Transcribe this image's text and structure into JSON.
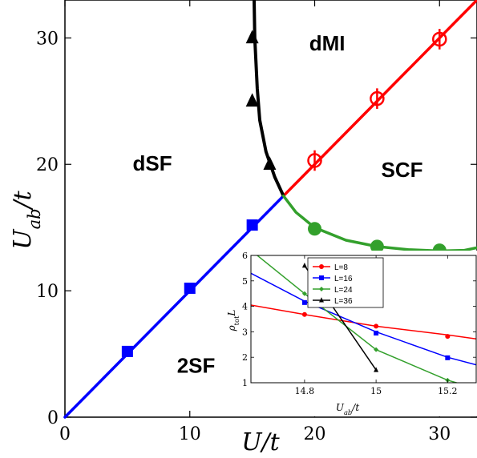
{
  "chart_data": [
    {
      "type": "line",
      "xlabel": "U/t",
      "ylabel": "U_ab/t",
      "xlim": [
        0,
        33
      ],
      "ylim": [
        0,
        33
      ],
      "x_ticks": [
        0,
        10,
        20,
        30
      ],
      "y_ticks": [
        0,
        10,
        20,
        30
      ],
      "grid": false,
      "region_labels": [
        {
          "text": "dMI",
          "x": 21,
          "y": 29
        },
        {
          "text": "dSF",
          "x": 7,
          "y": 19.5
        },
        {
          "text": "SCF",
          "x": 27,
          "y": 19
        },
        {
          "text": "2SF",
          "x": 10.5,
          "y": 3.5
        }
      ],
      "series": [
        {
          "color": "#0000ff",
          "line": [
            [
              0,
              0
            ],
            [
              17.5,
              17.5
            ]
          ],
          "marker": "square",
          "points": [
            [
              5,
              5.2
            ],
            [
              10,
              10.2
            ],
            [
              15,
              15.2
            ]
          ]
        },
        {
          "color": "#ff0000",
          "line": [
            [
              17.5,
              17.5
            ],
            [
              33,
              33
            ]
          ],
          "marker": "open-circle",
          "points": [
            [
              20,
              20.3
            ],
            [
              25,
              25.2
            ],
            [
              30,
              29.9
            ]
          ]
        },
        {
          "color": "#000000",
          "line": [
            [
              17.5,
              17.5
            ],
            [
              16.8,
              19.0
            ],
            [
              16.1,
              21.0
            ],
            [
              15.6,
              23.5
            ],
            [
              15.4,
              26.0
            ],
            [
              15.2,
              30.0
            ],
            [
              15.15,
              33.0
            ]
          ],
          "marker": "triangle",
          "points": [
            [
              15,
              30
            ],
            [
              15,
              25
            ],
            [
              16.4,
              20
            ]
          ]
        },
        {
          "color": "#33a02c",
          "line": [
            [
              17.5,
              17.5
            ],
            [
              18.5,
              16.2
            ],
            [
              20,
              15.0
            ],
            [
              22.5,
              14.0
            ],
            [
              25,
              13.5
            ],
            [
              27.5,
              13.25
            ],
            [
              30,
              13.15
            ],
            [
              32,
              13.2
            ],
            [
              33,
              13.4
            ]
          ],
          "marker": "filled-circle",
          "points": [
            [
              20,
              14.9
            ],
            [
              25,
              13.5
            ],
            [
              30,
              13.2
            ]
          ]
        }
      ]
    },
    {
      "type": "line",
      "xlabel": "U_ab/t",
      "ylabel": "ρ_tot L",
      "xlim": [
        14.65,
        15.28
      ],
      "ylim": [
        1,
        6
      ],
      "x_ticks": [
        14.8,
        15,
        15.2
      ],
      "y_ticks": [
        1,
        2,
        3,
        4,
        5,
        6
      ],
      "legend_position": "top-right",
      "series": [
        {
          "name": "L=8",
          "color": "#ff0000",
          "marker": "circle",
          "line": [
            [
              14.65,
              4.05
            ],
            [
              14.8,
              3.68
            ],
            [
              15.0,
              3.22
            ],
            [
              15.2,
              2.88
            ],
            [
              15.28,
              2.72
            ]
          ],
          "points": [
            [
              14.8,
              3.68
            ],
            [
              15.0,
              3.22
            ],
            [
              15.2,
              2.82
            ]
          ]
        },
        {
          "name": "L=16",
          "color": "#0000ff",
          "marker": "square",
          "line": [
            [
              14.65,
              5.3
            ],
            [
              14.8,
              4.2
            ],
            [
              15.0,
              3.0
            ],
            [
              15.2,
              2.0
            ],
            [
              15.28,
              1.7
            ]
          ],
          "points": [
            [
              14.8,
              4.15
            ],
            [
              15.0,
              2.95
            ],
            [
              15.2,
              1.98
            ]
          ]
        },
        {
          "name": "L=24",
          "color": "#33a02c",
          "marker": "diamond",
          "line": [
            [
              14.65,
              6.2
            ],
            [
              14.8,
              4.5
            ],
            [
              15.0,
              2.3
            ],
            [
              15.2,
              1.1
            ],
            [
              15.25,
              0.9
            ]
          ],
          "points": [
            [
              14.8,
              4.5
            ],
            [
              15.0,
              2.3
            ],
            [
              15.2,
              1.1
            ]
          ]
        },
        {
          "name": "L=36",
          "color": "#000000",
          "marker": "triangle",
          "line": [
            [
              14.8,
              5.6
            ],
            [
              15.0,
              1.5
            ]
          ],
          "points": [
            [
              14.8,
              5.6
            ],
            [
              15.0,
              1.5
            ]
          ]
        }
      ]
    }
  ]
}
